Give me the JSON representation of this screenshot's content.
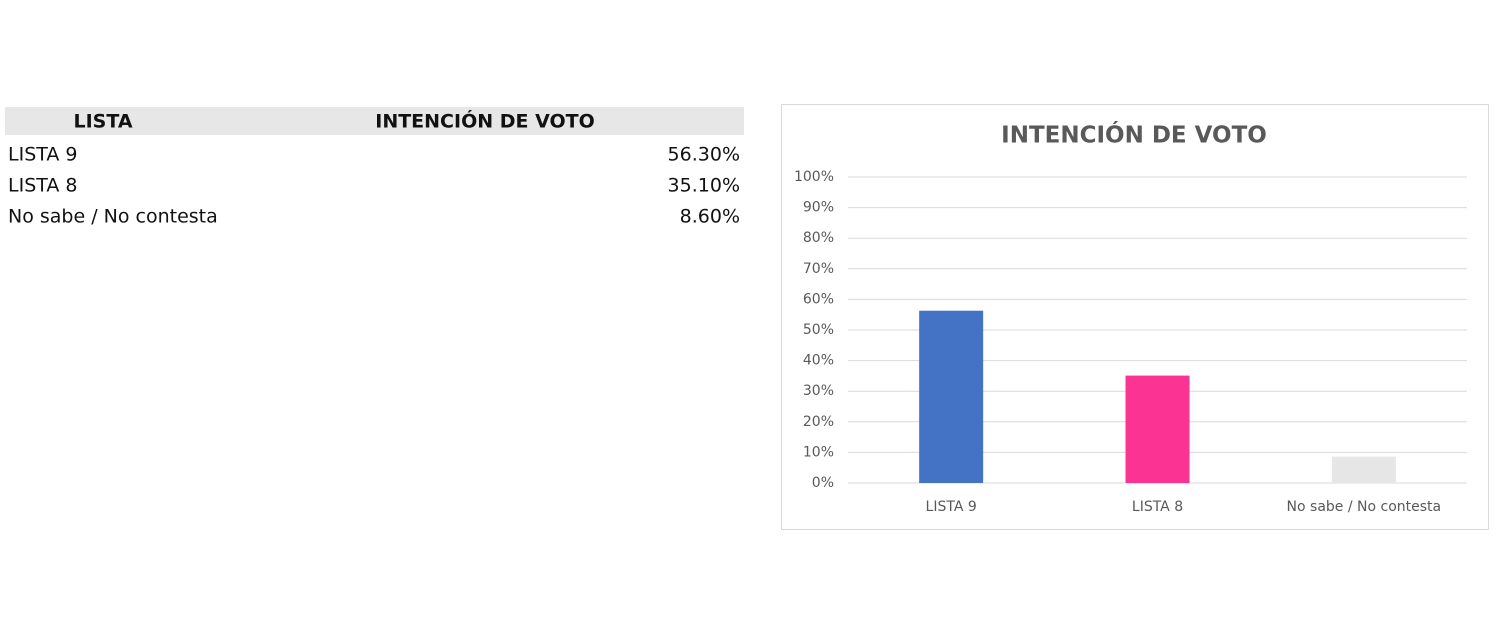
{
  "table": {
    "header": [
      "LISTA",
      "INTENCIÓN DE VOTO"
    ],
    "rows": [
      [
        "LISTA 9",
        "56.30%"
      ],
      [
        "LISTA 8",
        "35.10%"
      ],
      [
        "No sabe / No contesta",
        "8.60%"
      ]
    ]
  },
  "chart_data": {
    "type": "bar",
    "title": "INTENCIÓN DE VOTO",
    "categories": [
      "LISTA 9",
      "LISTA 8",
      "No sabe / No contesta"
    ],
    "values": [
      56.3,
      35.1,
      8.6
    ],
    "colors": [
      "#4472c4",
      "#fb3393",
      "#e6e6e6"
    ],
    "ylim": [
      0,
      100
    ],
    "yticks": [
      {
        "value": 0,
        "label": "0%"
      },
      {
        "value": 10,
        "label": "10%"
      },
      {
        "value": 20,
        "label": "20%"
      },
      {
        "value": 30,
        "label": "30%"
      },
      {
        "value": 40,
        "label": "40%"
      },
      {
        "value": 50,
        "label": "50%"
      },
      {
        "value": 60,
        "label": "60%"
      },
      {
        "value": 70,
        "label": "70%"
      },
      {
        "value": 80,
        "label": "80%"
      },
      {
        "value": 90,
        "label": "90%"
      },
      {
        "value": 100,
        "label": "100%"
      }
    ],
    "grid": true
  }
}
